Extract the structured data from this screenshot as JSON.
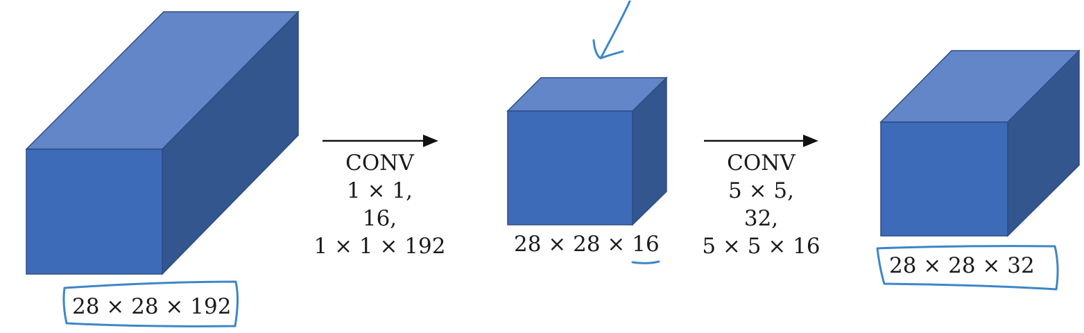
{
  "volumes": [
    {
      "id": "input",
      "dims": "28 × 28 × 192"
    },
    {
      "id": "intermediate",
      "dims": "28 × 28 × 16"
    },
    {
      "id": "output",
      "dims": "28 × 28 × 32"
    }
  ],
  "operations": [
    {
      "id": "conv1",
      "name": "CONV",
      "filter_size": "1 × 1,",
      "num_filters": "16,",
      "filter_dims": "1 × 1 × 192"
    },
    {
      "id": "conv2",
      "name": "CONV",
      "filter_size": "5 × 5,",
      "num_filters": "32,",
      "filter_dims": "5 × 5 × 16"
    }
  ],
  "colors": {
    "box_front": "#3e6bb8",
    "box_top": "#6386c8",
    "box_side": "#33568f",
    "box_edge": "#2c4c85",
    "ink": "#3d86c7",
    "text": "#1a1a1a"
  }
}
